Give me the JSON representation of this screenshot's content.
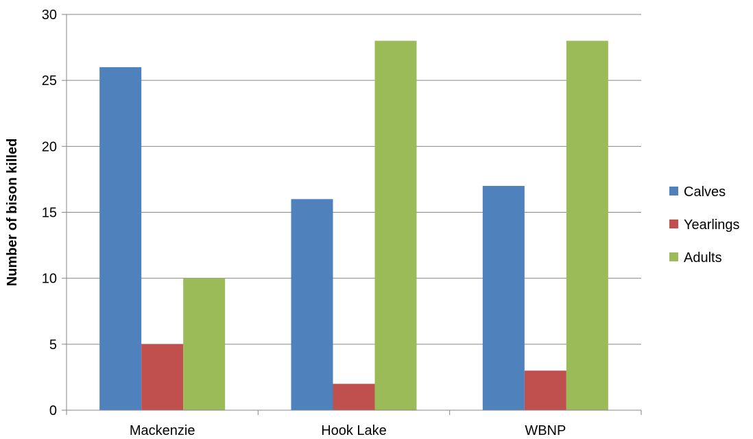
{
  "chart_data": {
    "type": "bar",
    "title": "",
    "xlabel": "",
    "ylabel": "Number of bison killed",
    "categories": [
      "Mackenzie",
      "Hook Lake",
      "WBNP"
    ],
    "series": [
      {
        "name": "Calves",
        "color": "#4f81bd",
        "values": [
          26,
          16,
          17
        ]
      },
      {
        "name": "Yearlings",
        "color": "#c0504d",
        "values": [
          5,
          2,
          3
        ]
      },
      {
        "name": "Adults",
        "color": "#9bbb59",
        "values": [
          10,
          28,
          28
        ]
      }
    ],
    "ylim": [
      0,
      30
    ],
    "yticks": [
      0,
      5,
      10,
      15,
      20,
      25,
      30
    ],
    "grid": true,
    "legend_position": "right"
  }
}
